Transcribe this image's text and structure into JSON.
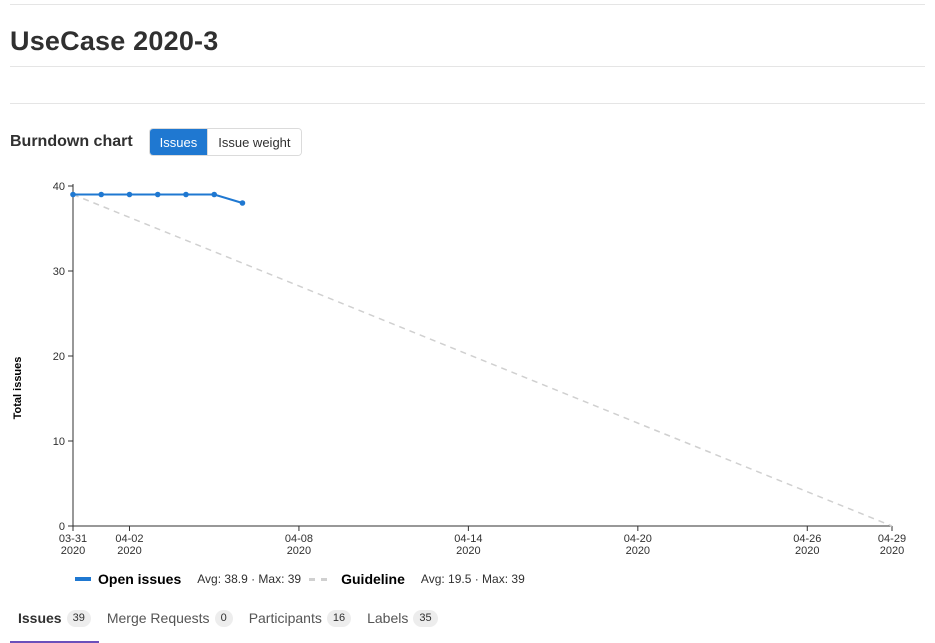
{
  "page": {
    "title": "UseCase 2020-3"
  },
  "burndown": {
    "heading": "Burndown chart",
    "toggle": {
      "issues": "Issues",
      "issue_weight": "Issue weight",
      "active": "issues"
    }
  },
  "legend": {
    "open": {
      "name": "Open issues",
      "stats": "Avg: 38.9 · Max: 39",
      "color": "#1f78d1"
    },
    "guideline": {
      "name": "Guideline",
      "stats": "Avg: 19.5 · Max: 39",
      "color": "#d0d0d0"
    }
  },
  "tabs": [
    {
      "label": "Issues",
      "count": "39",
      "active": true
    },
    {
      "label": "Merge Requests",
      "count": "0",
      "active": false
    },
    {
      "label": "Participants",
      "count": "16",
      "active": false
    },
    {
      "label": "Labels",
      "count": "35",
      "active": false
    }
  ],
  "chart_data": {
    "type": "line",
    "ylabel": "Total issues",
    "ylim": [
      0,
      40
    ],
    "yticks": [
      0,
      10,
      20,
      30,
      40
    ],
    "xlim": [
      "2020-03-31",
      "2020-04-29"
    ],
    "xticks": [
      {
        "date": "2020-03-31",
        "label1": "03-31",
        "label2": "2020"
      },
      {
        "date": "2020-04-02",
        "label1": "04-02",
        "label2": "2020"
      },
      {
        "date": "2020-04-08",
        "label1": "04-08",
        "label2": "2020"
      },
      {
        "date": "2020-04-14",
        "label1": "04-14",
        "label2": "2020"
      },
      {
        "date": "2020-04-20",
        "label1": "04-20",
        "label2": "2020"
      },
      {
        "date": "2020-04-26",
        "label1": "04-26",
        "label2": "2020"
      },
      {
        "date": "2020-04-29",
        "label1": "04-29",
        "label2": "2020"
      }
    ],
    "series": [
      {
        "name": "Open issues",
        "color": "#1f78d1",
        "points": [
          {
            "x": "2020-03-31",
            "y": 39
          },
          {
            "x": "2020-04-01",
            "y": 39
          },
          {
            "x": "2020-04-02",
            "y": 39
          },
          {
            "x": "2020-04-03",
            "y": 39
          },
          {
            "x": "2020-04-04",
            "y": 39
          },
          {
            "x": "2020-04-05",
            "y": 39
          },
          {
            "x": "2020-04-06",
            "y": 38
          }
        ]
      },
      {
        "name": "Guideline",
        "color": "#d0d0d0",
        "dashed": true,
        "points": [
          {
            "x": "2020-03-31",
            "y": 39
          },
          {
            "x": "2020-04-29",
            "y": 0
          }
        ]
      }
    ]
  }
}
